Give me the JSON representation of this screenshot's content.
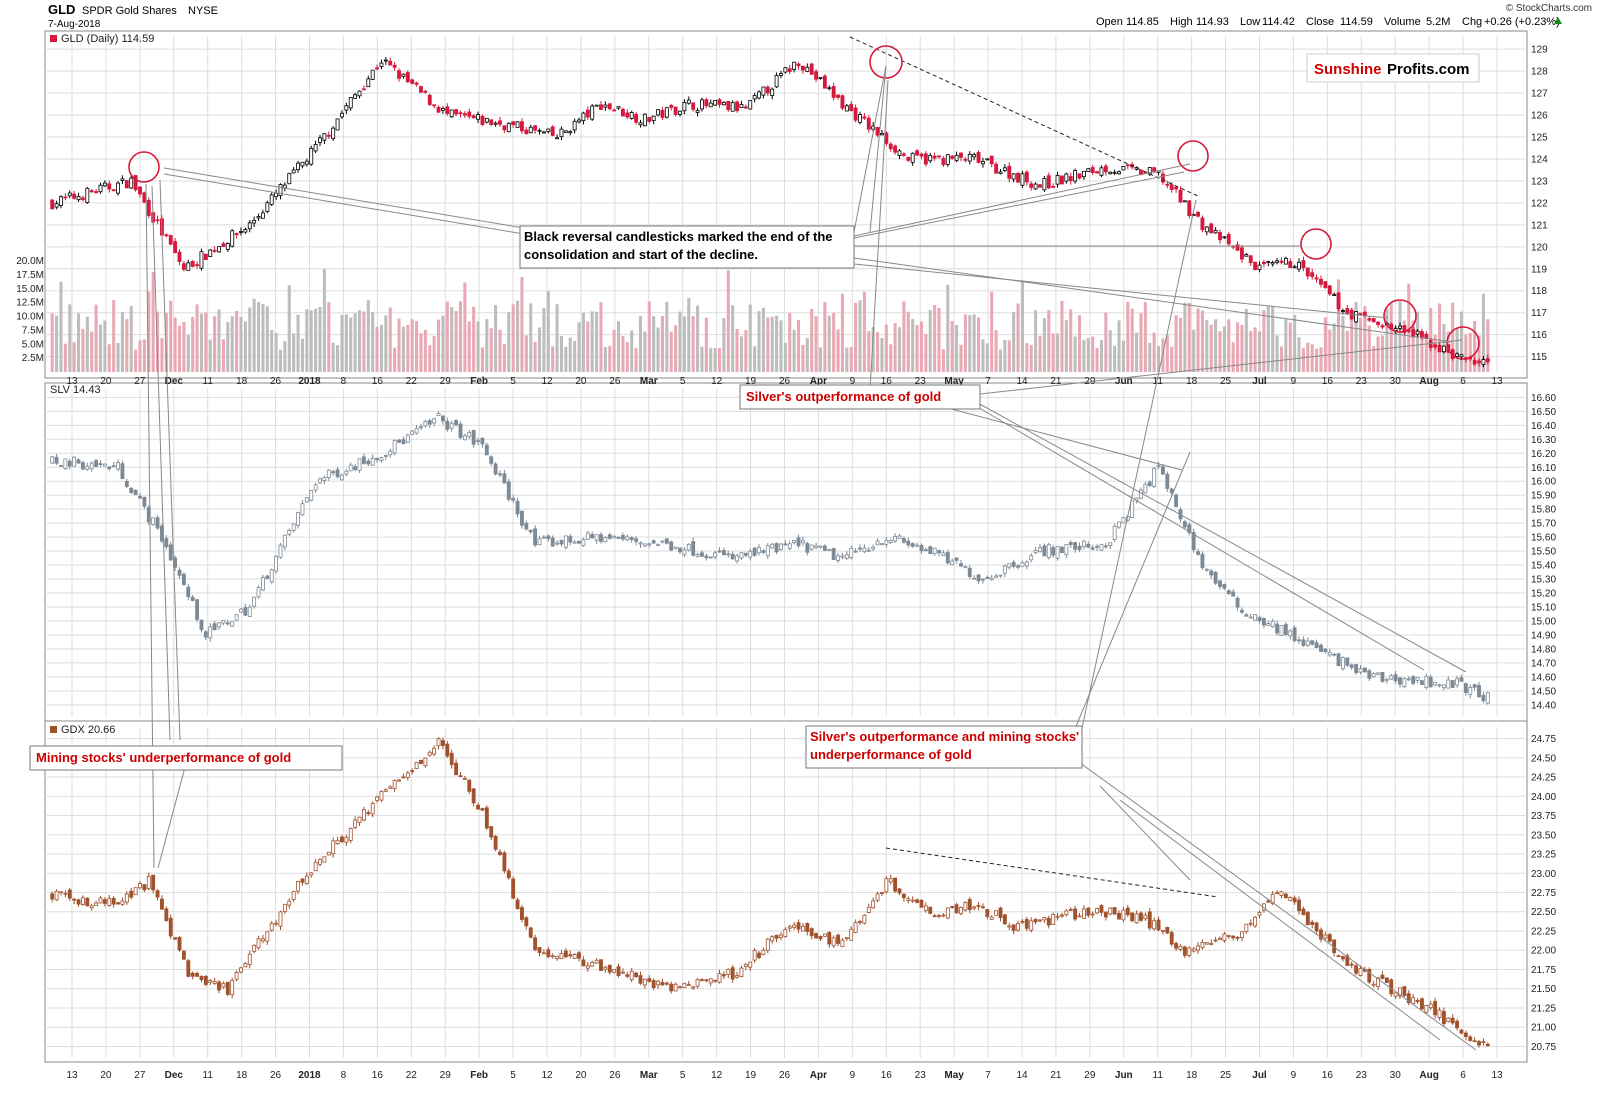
{
  "header": {
    "symbol": "GLD",
    "name": "SPDR Gold Shares",
    "exchange": "NYSE",
    "date": "7-Aug-2018",
    "copyright": "© StockCharts.com",
    "quote": {
      "open_label": "Open",
      "open": "114.85",
      "high_label": "High",
      "high": "114.93",
      "low_label": "Low",
      "low": "114.42",
      "close_label": "Close",
      "close": "114.59",
      "volume_label": "Volume",
      "volume": "5.2M",
      "chg_label": "Chg",
      "chg": "+0.26 (+0.23%)"
    }
  },
  "logo": {
    "part1": "Sunshine",
    "part2": "Profits.com"
  },
  "colors": {
    "up_fill": "#ffffff",
    "gld_down": "#d6193c",
    "gld_black": "#000000",
    "slv": "#7d8a96",
    "gdx": "#a0522d",
    "vol_gray": "#bdbdbd",
    "vol_red": "#e9a9b4",
    "annotation_red": "#cc0000",
    "grid": "#dddddd"
  },
  "annotations": {
    "black_reversal": "Black reversal candlesticks marked the end of the consolidation and start of the decline.",
    "silver_outperf": "Silver's outperformance of gold",
    "mining_underperf": "Mining stocks' underperformance of gold",
    "silver_and_mining": "Silver's outperformance and mining stocks' underperformance of gold"
  },
  "chart_data": [
    {
      "type": "candlestick",
      "title": "GLD (Daily) 114.59",
      "ylim": [
        114.3,
        129.6
      ],
      "y_ticks": [
        115,
        116,
        117,
        118,
        119,
        120,
        121,
        122,
        123,
        124,
        125,
        126,
        127,
        128,
        129
      ],
      "volume_ticks": [
        "2.5M",
        "5.0M",
        "7.5M",
        "10.0M",
        "12.5M",
        "15.0M",
        "17.5M",
        "20.0M"
      ],
      "volume_range": [
        0,
        22
      ],
      "x_ticks": [
        "13",
        "20",
        "27",
        "Dec",
        "11",
        "18",
        "26",
        "2018",
        "8",
        "16",
        "22",
        "29",
        "Feb",
        "5",
        "12",
        "20",
        "26",
        "Mar",
        "5",
        "12",
        "19",
        "26",
        "Apr",
        "9",
        "16",
        "23",
        "May",
        "7",
        "14",
        "21",
        "29",
        "Jun",
        "11",
        "18",
        "25",
        "Jul",
        "9",
        "16",
        "23",
        "30",
        "Aug",
        "6",
        "13"
      ],
      "anchors": [
        [
          0,
          122.0
        ],
        [
          18,
          123.0
        ],
        [
          30,
          119.0
        ],
        [
          45,
          121.0
        ],
        [
          60,
          124.5
        ],
        [
          75,
          128.5
        ],
        [
          90,
          126.0
        ],
        [
          105,
          125.5
        ],
        [
          115,
          125.0
        ],
        [
          125,
          126.5
        ],
        [
          135,
          125.8
        ],
        [
          145,
          126.5
        ],
        [
          158,
          126.3
        ],
        [
          170,
          128.5
        ],
        [
          180,
          126.5
        ],
        [
          195,
          124.0
        ],
        [
          210,
          124.0
        ],
        [
          225,
          122.8
        ],
        [
          240,
          123.6
        ],
        [
          252,
          123.3
        ],
        [
          262,
          121.0
        ],
        [
          275,
          119.0
        ],
        [
          283,
          119.3
        ],
        [
          295,
          117.0
        ],
        [
          310,
          116.0
        ],
        [
          320,
          115.0
        ],
        [
          327,
          114.6
        ]
      ]
    },
    {
      "type": "candlestick",
      "title": "SLV 14.43",
      "ylim": [
        14.32,
        16.66
      ],
      "y_ticks": [
        14.4,
        14.5,
        14.6,
        14.7,
        14.8,
        14.9,
        15.0,
        15.1,
        15.2,
        15.3,
        15.4,
        15.5,
        15.6,
        15.7,
        15.8,
        15.9,
        16.0,
        16.1,
        16.2,
        16.3,
        16.4,
        16.5,
        16.6
      ],
      "anchors": [
        [
          0,
          16.15
        ],
        [
          15,
          16.1
        ],
        [
          25,
          15.6
        ],
        [
          35,
          14.9
        ],
        [
          45,
          15.1
        ],
        [
          60,
          16.0
        ],
        [
          75,
          16.2
        ],
        [
          88,
          16.45
        ],
        [
          98,
          16.25
        ],
        [
          110,
          15.55
        ],
        [
          125,
          15.6
        ],
        [
          140,
          15.55
        ],
        [
          155,
          15.45
        ],
        [
          170,
          15.55
        ],
        [
          180,
          15.45
        ],
        [
          190,
          15.6
        ],
        [
          200,
          15.5
        ],
        [
          212,
          15.3
        ],
        [
          225,
          15.5
        ],
        [
          240,
          15.55
        ],
        [
          252,
          16.1
        ],
        [
          262,
          15.4
        ],
        [
          270,
          15.1
        ],
        [
          285,
          14.85
        ],
        [
          300,
          14.6
        ],
        [
          320,
          14.55
        ],
        [
          327,
          14.45
        ]
      ]
    },
    {
      "type": "candlestick",
      "title": "GDX 20.66",
      "ylim": [
        20.6,
        24.9
      ],
      "y_ticks": [
        20.75,
        21.0,
        21.25,
        21.5,
        21.75,
        22.0,
        22.25,
        22.5,
        22.75,
        23.0,
        23.25,
        23.5,
        23.75,
        24.0,
        24.25,
        24.5,
        24.75
      ],
      "anchors": [
        [
          0,
          22.7
        ],
        [
          15,
          22.6
        ],
        [
          22,
          22.9
        ],
        [
          32,
          21.6
        ],
        [
          40,
          21.5
        ],
        [
          58,
          23.0
        ],
        [
          75,
          24.0
        ],
        [
          88,
          24.7
        ],
        [
          98,
          23.8
        ],
        [
          110,
          22.0
        ],
        [
          125,
          21.8
        ],
        [
          140,
          21.5
        ],
        [
          155,
          21.7
        ],
        [
          168,
          22.3
        ],
        [
          180,
          22.1
        ],
        [
          190,
          22.9
        ],
        [
          200,
          22.5
        ],
        [
          210,
          22.6
        ],
        [
          220,
          22.3
        ],
        [
          235,
          22.5
        ],
        [
          248,
          22.45
        ],
        [
          258,
          22.0
        ],
        [
          270,
          22.2
        ],
        [
          280,
          22.8
        ],
        [
          295,
          21.8
        ],
        [
          312,
          21.3
        ],
        [
          327,
          20.75
        ]
      ]
    }
  ]
}
